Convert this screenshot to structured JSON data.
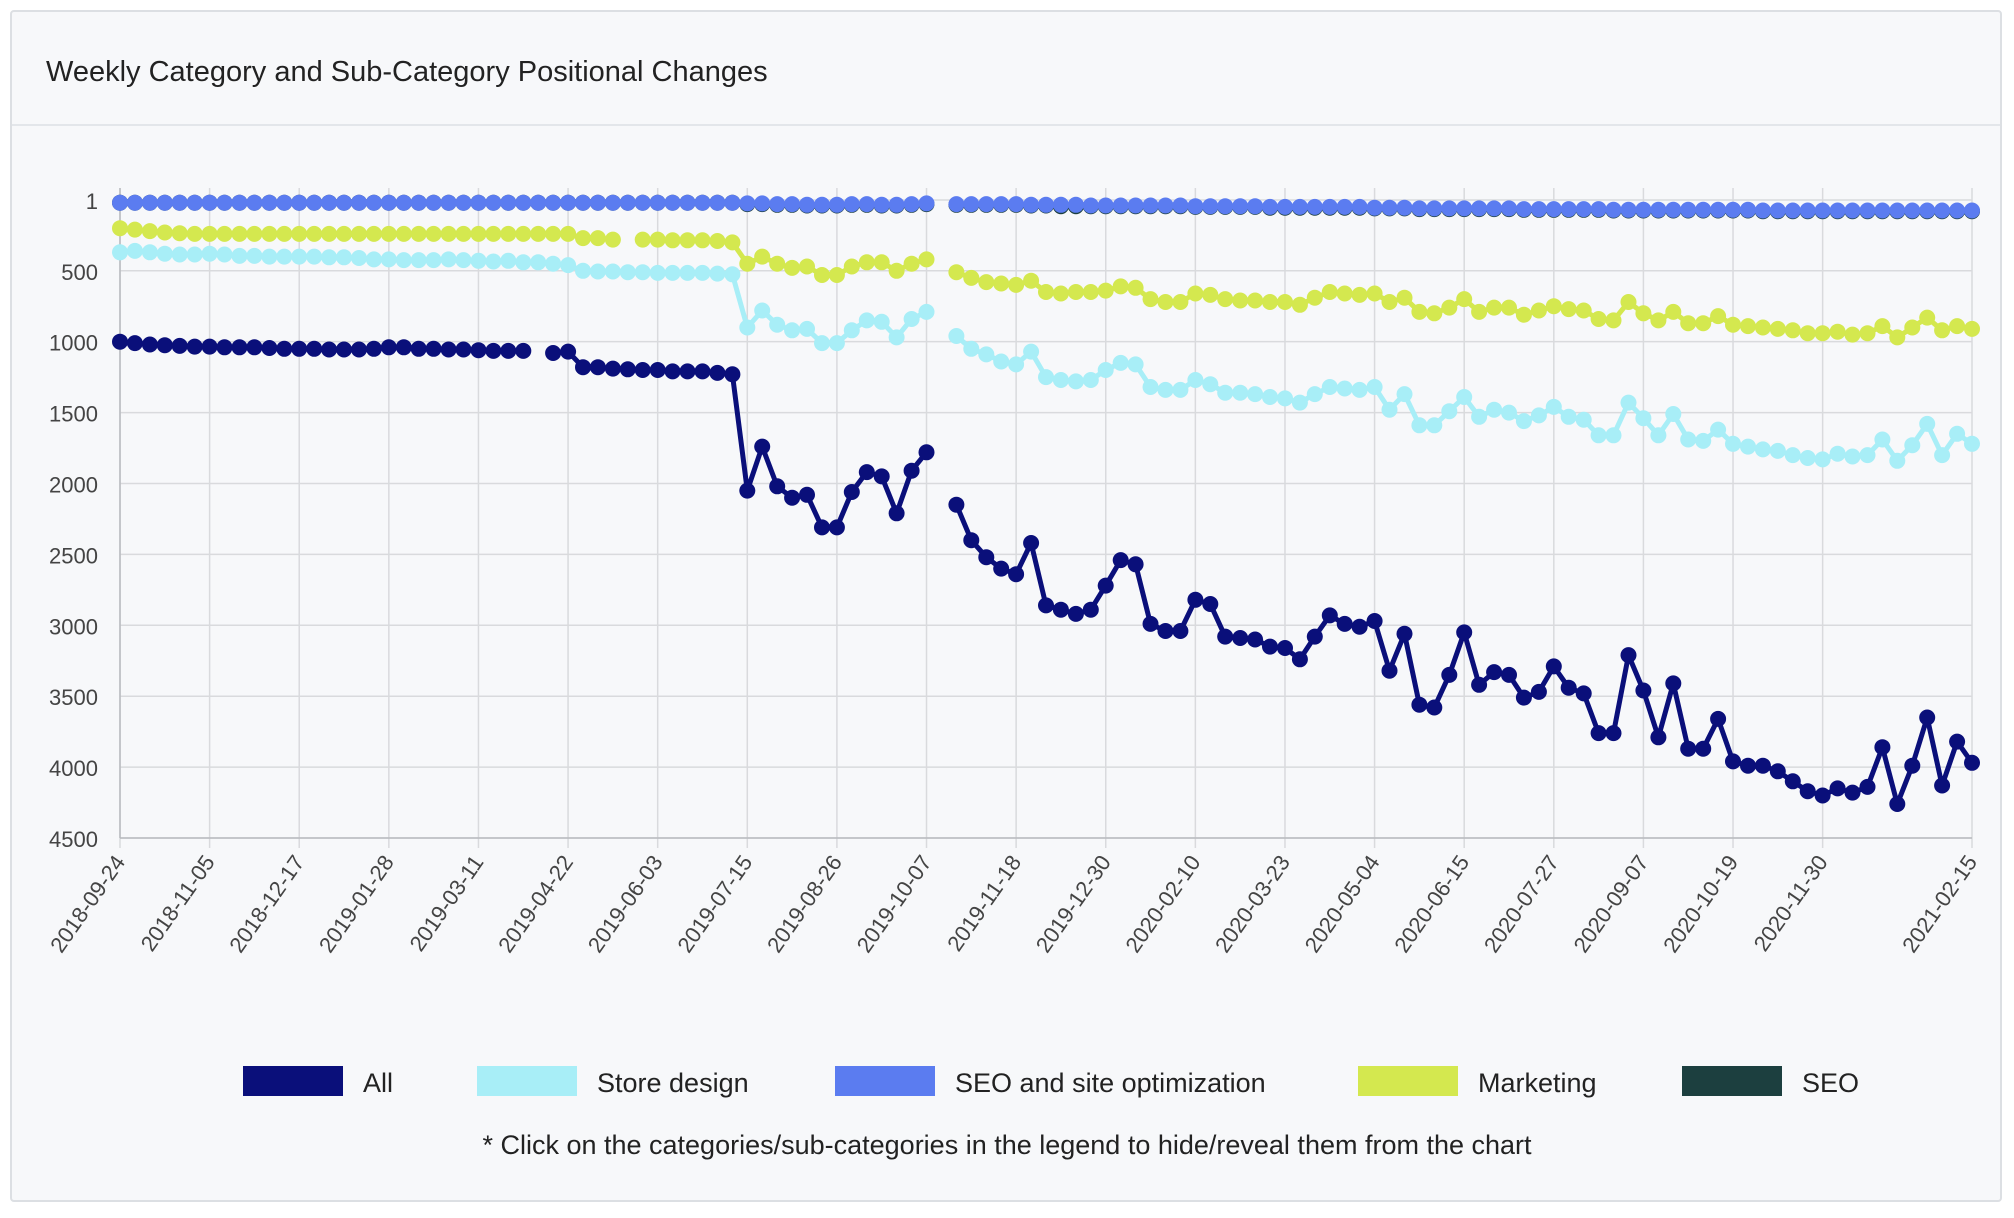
{
  "title": "Weekly Category and Sub-Category Positional Changes",
  "note": "* Click on the categories/sub-categories in the legend to hide/reveal them from the chart",
  "chart_data": {
    "type": "line",
    "x_labels": [
      "2018-09-24",
      "2018-11-05",
      "2018-12-17",
      "2019-01-28",
      "2019-03-11",
      "2019-04-22",
      "2019-06-03",
      "2019-07-15",
      "2019-08-26",
      "2019-10-07",
      "2019-11-18",
      "2019-12-30",
      "2020-02-10",
      "2020-03-23",
      "2020-05-04",
      "2020-06-15",
      "2020-07-27",
      "2020-09-07",
      "2020-10-19",
      "2020-11-30",
      "2021-02-15"
    ],
    "y_ticks": [
      1,
      500,
      1000,
      1500,
      2000,
      2500,
      3000,
      3500,
      4000,
      4500
    ],
    "ylim": [
      1,
      4500
    ],
    "y_reversed": true,
    "grid": true,
    "legend_position": "bottom",
    "series": [
      {
        "name": "All",
        "color": "#0a0f7a",
        "values": [
          1000,
          1010,
          1020,
          1025,
          1030,
          1035,
          1035,
          1040,
          1040,
          1040,
          1045,
          1050,
          1050,
          1050,
          1055,
          1055,
          1055,
          1050,
          1040,
          1040,
          1050,
          1050,
          1055,
          1055,
          1060,
          1065,
          1065,
          1065,
          null,
          1080,
          1070,
          1180,
          1180,
          1190,
          1195,
          1200,
          1200,
          1210,
          1210,
          1210,
          1220,
          1230,
          2050,
          1740,
          2020,
          2100,
          2080,
          2310,
          2310,
          2060,
          1920,
          1950,
          2210,
          1910,
          1780,
          null,
          2150,
          2400,
          2520,
          2600,
          2640,
          2420,
          2860,
          2890,
          2920,
          2890,
          2720,
          2540,
          2570,
          2990,
          3040,
          3040,
          2820,
          2850,
          3080,
          3090,
          3100,
          3150,
          3160,
          3240,
          3080,
          2930,
          2990,
          3010,
          2970,
          3320,
          3060,
          3560,
          3580,
          3350,
          3050,
          3420,
          3330,
          3350,
          3510,
          3470,
          3290,
          3440,
          3480,
          3760,
          3760,
          3210,
          3460,
          3790,
          3410,
          3870,
          3870,
          3660,
          3960,
          3990,
          3990,
          4030,
          4100,
          4170,
          4200,
          4150,
          4180,
          4140,
          3860,
          4260,
          3990,
          3650,
          4130,
          3820,
          3970
        ]
      },
      {
        "name": "Store design",
        "color": "#a8eef7",
        "values": [
          370,
          360,
          370,
          380,
          385,
          385,
          380,
          385,
          395,
          395,
          400,
          400,
          400,
          400,
          405,
          405,
          410,
          420,
          420,
          425,
          425,
          425,
          420,
          425,
          430,
          435,
          430,
          440,
          440,
          450,
          460,
          500,
          505,
          505,
          510,
          510,
          515,
          515,
          515,
          515,
          520,
          525,
          900,
          780,
          880,
          920,
          910,
          1010,
          1010,
          920,
          850,
          860,
          970,
          840,
          790,
          null,
          960,
          1050,
          1090,
          1140,
          1160,
          1070,
          1250,
          1270,
          1280,
          1270,
          1200,
          1150,
          1160,
          1320,
          1340,
          1340,
          1270,
          1300,
          1360,
          1360,
          1370,
          1390,
          1400,
          1430,
          1370,
          1320,
          1330,
          1340,
          1320,
          1480,
          1370,
          1590,
          1590,
          1490,
          1390,
          1530,
          1480,
          1500,
          1560,
          1520,
          1460,
          1530,
          1550,
          1660,
          1660,
          1430,
          1540,
          1660,
          1510,
          1690,
          1700,
          1620,
          1720,
          1740,
          1760,
          1770,
          1800,
          1820,
          1830,
          1790,
          1810,
          1800,
          1690,
          1840,
          1730,
          1580,
          1800,
          1650,
          1720
        ]
      },
      {
        "name": "SEO and site optimization",
        "color": "#5b7cf0",
        "values": [
          20,
          20,
          20,
          20,
          20,
          20,
          20,
          20,
          20,
          20,
          20,
          20,
          20,
          20,
          20,
          20,
          20,
          20,
          20,
          20,
          20,
          20,
          20,
          20,
          20,
          20,
          20,
          20,
          20,
          20,
          20,
          20,
          20,
          20,
          20,
          20,
          20,
          20,
          20,
          20,
          20,
          20,
          25,
          25,
          30,
          30,
          35,
          35,
          35,
          30,
          30,
          35,
          35,
          30,
          25,
          null,
          30,
          30,
          30,
          30,
          30,
          35,
          35,
          35,
          35,
          40,
          40,
          40,
          40,
          40,
          40,
          40,
          45,
          45,
          45,
          45,
          45,
          50,
          50,
          50,
          50,
          50,
          50,
          50,
          55,
          55,
          55,
          60,
          60,
          60,
          60,
          60,
          60,
          60,
          65,
          65,
          65,
          65,
          65,
          65,
          70,
          70,
          70,
          70,
          70,
          70,
          70,
          70,
          70,
          70,
          75,
          75,
          75,
          75,
          75,
          75,
          75,
          75,
          75,
          75,
          75,
          75,
          75,
          75,
          75
        ]
      },
      {
        "name": "Marketing",
        "color": "#d4e84f",
        "values": [
          200,
          210,
          220,
          230,
          235,
          240,
          240,
          240,
          240,
          240,
          240,
          240,
          240,
          240,
          240,
          240,
          240,
          240,
          240,
          240,
          240,
          240,
          240,
          240,
          240,
          240,
          240,
          240,
          240,
          240,
          240,
          270,
          270,
          280,
          null,
          280,
          280,
          285,
          285,
          285,
          290,
          300,
          450,
          400,
          450,
          480,
          470,
          530,
          530,
          470,
          440,
          440,
          500,
          450,
          420,
          null,
          510,
          550,
          580,
          590,
          600,
          570,
          650,
          660,
          650,
          650,
          640,
          610,
          620,
          700,
          720,
          720,
          660,
          670,
          700,
          710,
          710,
          720,
          720,
          740,
          690,
          650,
          660,
          670,
          660,
          720,
          690,
          790,
          800,
          760,
          700,
          790,
          760,
          760,
          810,
          780,
          750,
          770,
          780,
          840,
          850,
          720,
          800,
          850,
          790,
          870,
          870,
          820,
          880,
          890,
          900,
          910,
          920,
          940,
          940,
          930,
          950,
          940,
          890,
          970,
          900,
          830,
          920,
          890,
          910
        ]
      },
      {
        "name": "SEO",
        "color": "#1c3f3f",
        "values": [
          20,
          20,
          20,
          20,
          20,
          20,
          20,
          20,
          20,
          20,
          20,
          20,
          20,
          20,
          20,
          20,
          20,
          20,
          20,
          20,
          20,
          20,
          20,
          20,
          20,
          20,
          20,
          20,
          20,
          20,
          20,
          20,
          20,
          20,
          20,
          20,
          20,
          20,
          20,
          20,
          20,
          20,
          30,
          30,
          35,
          35,
          40,
          40,
          40,
          35,
          35,
          40,
          40,
          35,
          30,
          null,
          35,
          35,
          35,
          35,
          35,
          40,
          40,
          45,
          45,
          45,
          45,
          45,
          45,
          45,
          45,
          45,
          50,
          50,
          50,
          50,
          50,
          55,
          55,
          55,
          55,
          55,
          55,
          55,
          60,
          60,
          60,
          65,
          65,
          65,
          65,
          65,
          65,
          65,
          70,
          70,
          70,
          70,
          70,
          70,
          75,
          75,
          75,
          75,
          75,
          75,
          75,
          75,
          75,
          75,
          80,
          80,
          80,
          80,
          80,
          80,
          80,
          80,
          80,
          80,
          80,
          80,
          80,
          80,
          80
        ]
      }
    ]
  }
}
